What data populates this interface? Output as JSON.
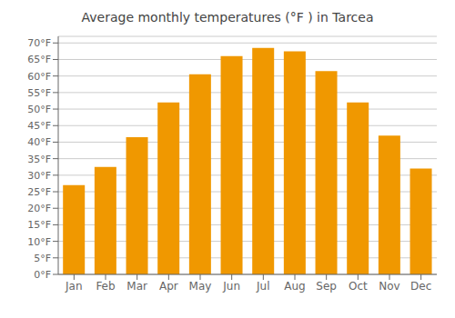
{
  "chart_data": {
    "type": "bar",
    "title": "Average monthly temperatures (°F ) in Tarcea",
    "categories": [
      "Jan",
      "Feb",
      "Mar",
      "Apr",
      "May",
      "Jun",
      "Jul",
      "Aug",
      "Sep",
      "Oct",
      "Nov",
      "Dec"
    ],
    "values": [
      27,
      32.5,
      41.5,
      52,
      60.5,
      66,
      68.5,
      67.5,
      61.5,
      52,
      42,
      32
    ],
    "color": "#F09800",
    "ylim": [
      0,
      72
    ],
    "yticks": [
      {
        "value": 0,
        "label": "0°F"
      },
      {
        "value": 5,
        "label": "5°F"
      },
      {
        "value": 10,
        "label": "10°F"
      },
      {
        "value": 15,
        "label": "15°F"
      },
      {
        "value": 20,
        "label": "20°F"
      },
      {
        "value": 25,
        "label": "25°F"
      },
      {
        "value": 30,
        "label": "30°F"
      },
      {
        "value": 35,
        "label": "35°F"
      },
      {
        "value": 40,
        "label": "40°F"
      },
      {
        "value": 45,
        "label": "45°F"
      },
      {
        "value": 50,
        "label": "50°F"
      },
      {
        "value": 55,
        "label": "55°F"
      },
      {
        "value": 60,
        "label": "60°F"
      },
      {
        "value": 65,
        "label": "65°F"
      },
      {
        "value": 70,
        "label": "70°F"
      }
    ],
    "grid": true
  }
}
